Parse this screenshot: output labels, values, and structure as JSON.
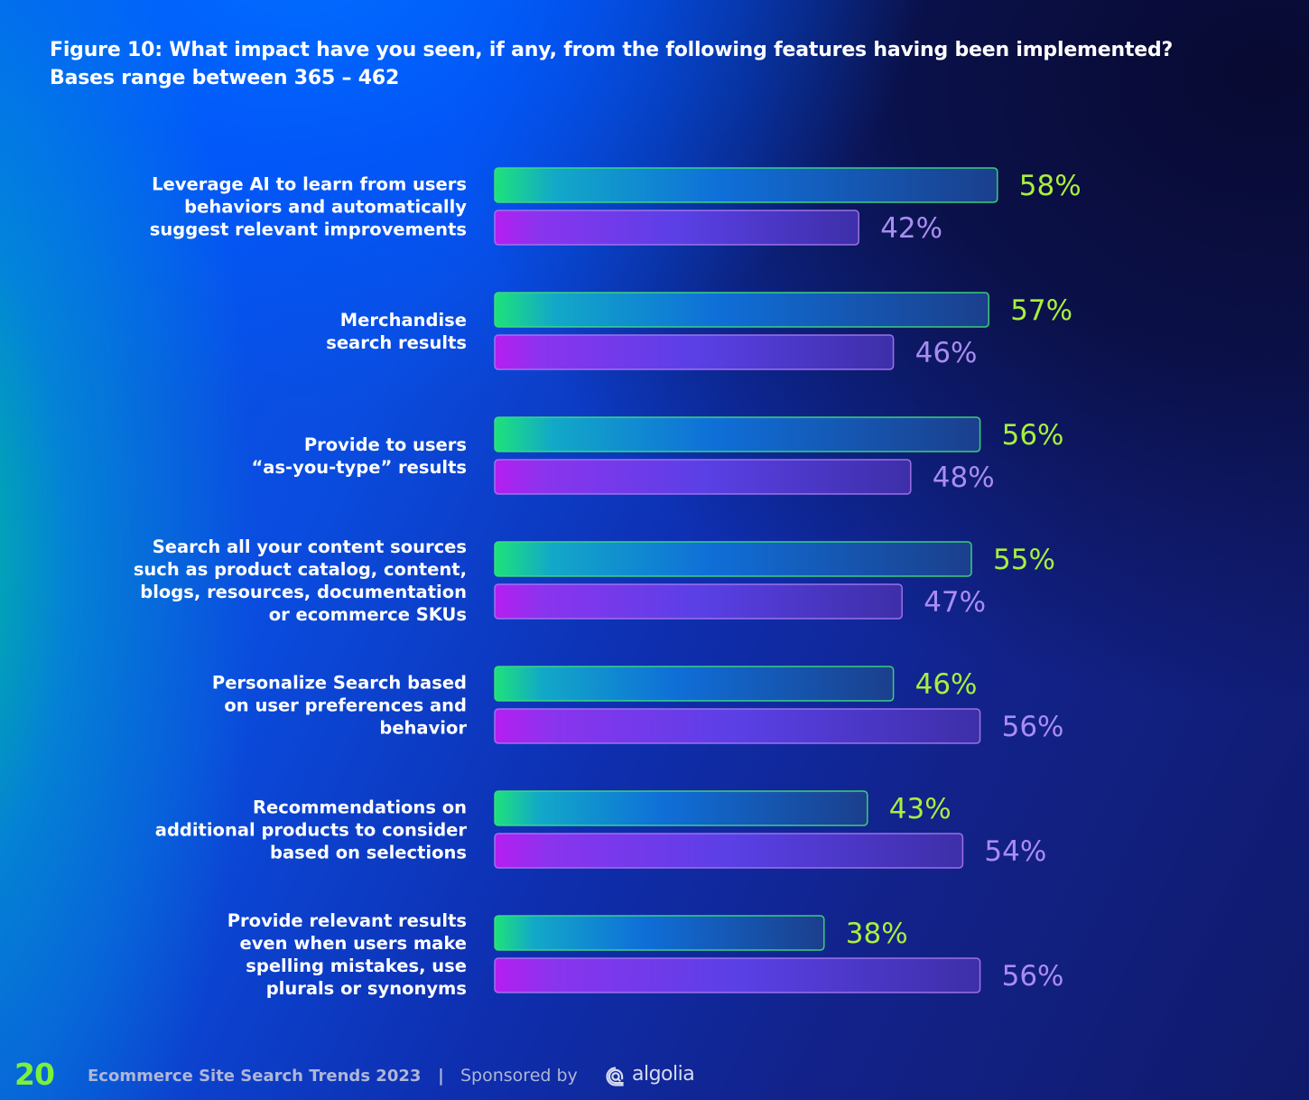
{
  "header": {
    "title": "Figure 10: What impact have you seen, if any, from the following features having been implemented?",
    "subtitle": "Bases range between 365 – 462"
  },
  "colors": {
    "series_a_label": "#a8f03c",
    "series_b_label": "#a98cf2",
    "axis_line": "#3ce05a",
    "page_number": "#7df03c"
  },
  "chart_data": {
    "type": "bar",
    "orientation": "horizontal",
    "categories": [
      [
        "Leverage AI to learn from users",
        "behaviors and automatically",
        "suggest relevant improvements"
      ],
      [
        "Merchandise",
        "search results"
      ],
      [
        "Provide to users",
        "“as-you-type” results"
      ],
      [
        "Search all your content sources",
        "such as product catalog, content,",
        "blogs, resources, documentation",
        "or ecommerce SKUs"
      ],
      [
        "Personalize Search based",
        "on user preferences and",
        "behavior"
      ],
      [
        "Recommendations on",
        "additional products to consider",
        "based on selections"
      ],
      [
        "Provide relevant results",
        "even when users make",
        "spelling mistakes, use",
        "plurals or synonyms"
      ]
    ],
    "series": [
      {
        "values": [
          58,
          57,
          56,
          55,
          46,
          43,
          38
        ],
        "labels": [
          "58%",
          "57%",
          "56%",
          "55%",
          "46%",
          "43%",
          "38%"
        ],
        "color": "green-teal gradient"
      },
      {
        "values": [
          42,
          46,
          48,
          47,
          56,
          54,
          56
        ],
        "labels": [
          "42%",
          "46%",
          "48%",
          "47%",
          "56%",
          "54%",
          "56%"
        ],
        "color": "purple gradient"
      }
    ],
    "xlim": [
      0,
      100
    ],
    "grid": false,
    "legend": "none"
  },
  "footer": {
    "page_number": "20",
    "report_title": "Ecommerce Site Search Trends  2023",
    "separator": "|",
    "sponsored_text": "Sponsored by",
    "brand": "algolia"
  }
}
